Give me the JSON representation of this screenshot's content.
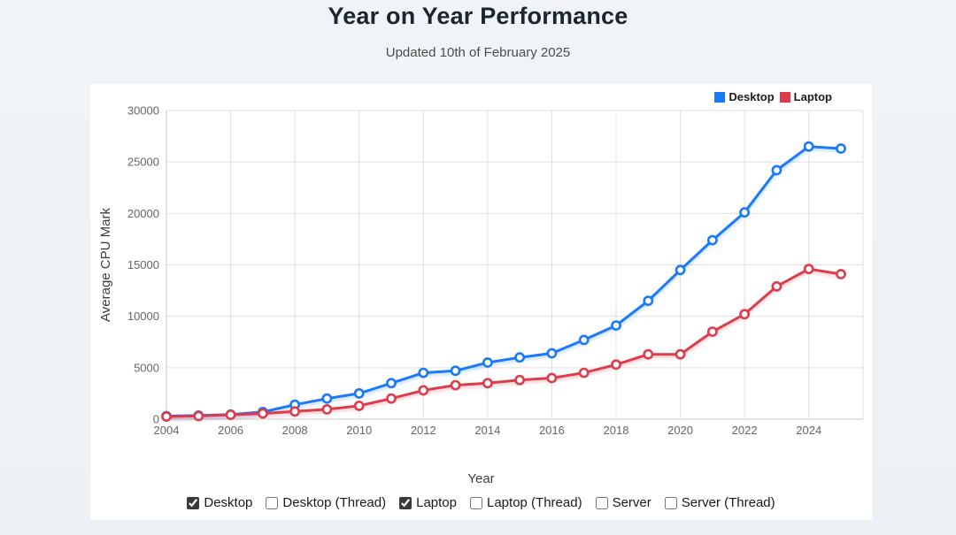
{
  "page": {
    "title": "Year on Year Performance",
    "subtitle": "Updated 10th of February 2025"
  },
  "chart_data": {
    "type": "line",
    "title": "Year on Year Performance",
    "xlabel": "Year",
    "ylabel": "Average CPU Mark",
    "ylim": [
      0,
      30000
    ],
    "ytick_step": 5000,
    "grid": true,
    "legend_position": "top-right",
    "x": [
      2004,
      2005,
      2006,
      2007,
      2008,
      2009,
      2010,
      2011,
      2012,
      2013,
      2014,
      2015,
      2016,
      2017,
      2018,
      2019,
      2020,
      2021,
      2022,
      2023,
      2024,
      2025
    ],
    "xtick_labels": [
      "2004",
      "2006",
      "2008",
      "2010",
      "2012",
      "2014",
      "2016",
      "2018",
      "2020",
      "2022",
      "2024"
    ],
    "series": [
      {
        "name": "Desktop",
        "color": "#1a79f7",
        "values": [
          300,
          350,
          450,
          700,
          1400,
          2000,
          2500,
          3500,
          4500,
          4700,
          5500,
          6000,
          6400,
          7700,
          9100,
          11500,
          14500,
          17400,
          20100,
          24200,
          26500,
          26300
        ]
      },
      {
        "name": "Laptop",
        "color": "#dc3c4c",
        "values": [
          250,
          300,
          420,
          550,
          750,
          950,
          1300,
          2000,
          2800,
          3300,
          3500,
          3800,
          4000,
          4500,
          5300,
          6300,
          6300,
          8500,
          10200,
          12900,
          14600,
          14100
        ]
      }
    ]
  },
  "controls": {
    "checkboxes": [
      {
        "label": "Desktop",
        "checked": true
      },
      {
        "label": "Desktop (Thread)",
        "checked": false
      },
      {
        "label": "Laptop",
        "checked": true
      },
      {
        "label": "Laptop (Thread)",
        "checked": false
      },
      {
        "label": "Server",
        "checked": false
      },
      {
        "label": "Server (Thread)",
        "checked": false
      }
    ]
  },
  "colors": {
    "page_bg": "#edf2f7",
    "panel_bg": "#ffffff",
    "grid": "#e0e0e0",
    "axis": "#c9c9c9",
    "tick_text": "#666666",
    "desktop": "#1a79f7",
    "laptop": "#dc3c4c"
  }
}
